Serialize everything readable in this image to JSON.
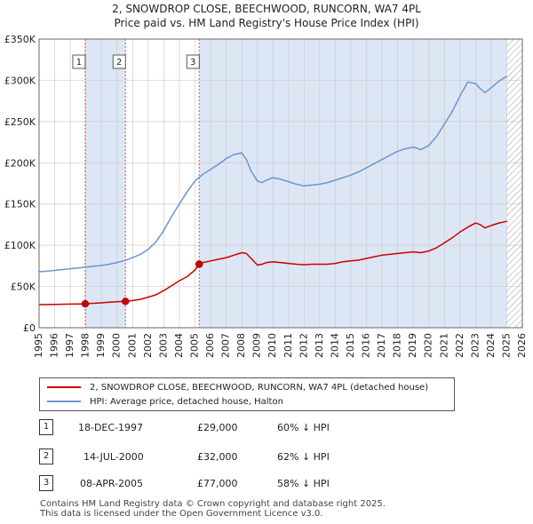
{
  "title_line1": "2, SNOWDROP CLOSE, BEECHWOOD, RUNCORN, WA7 4PL",
  "title_line2": "Price paid vs. HM Land Registry's House Price Index (HPI)",
  "colors": {
    "property": "#cc0000",
    "hpi": "#6a96cf",
    "shade": "#dde6f4",
    "grid": "#cccccc",
    "sale_line": "#e05050"
  },
  "chart_data": {
    "type": "line",
    "xlim": [
      1995,
      2026
    ],
    "ylim": [
      0,
      350000
    ],
    "x_ticks": [
      1995,
      1996,
      1997,
      1998,
      1999,
      2000,
      2001,
      2002,
      2003,
      2004,
      2005,
      2006,
      2007,
      2008,
      2009,
      2010,
      2011,
      2012,
      2013,
      2014,
      2015,
      2016,
      2017,
      2018,
      2019,
      2020,
      2021,
      2022,
      2023,
      2024,
      2025,
      2026
    ],
    "y_ticks": [
      {
        "value": 0,
        "label": "£0"
      },
      {
        "value": 50000,
        "label": "£50K"
      },
      {
        "value": 100000,
        "label": "£100K"
      },
      {
        "value": 150000,
        "label": "£150K"
      },
      {
        "value": 200000,
        "label": "£200K"
      },
      {
        "value": 250000,
        "label": "£250K"
      },
      {
        "value": 300000,
        "label": "£300K"
      },
      {
        "value": 350000,
        "label": "£350K"
      }
    ],
    "grid": true,
    "series": [
      {
        "name": "2, SNOWDROP CLOSE, BEECHWOOD, RUNCORN, WA7 4PL (detached house)",
        "x": [
          1995.0,
          1996.0,
          1997.0,
          1997.96,
          1998.5,
          1999.0,
          1999.5,
          2000.0,
          2000.54,
          2001.0,
          2001.5,
          2002.0,
          2002.5,
          2003.0,
          2003.5,
          2004.0,
          2004.5,
          2005.0,
          2005.27,
          2005.5,
          2006.0,
          2006.5,
          2007.0,
          2007.5,
          2008.0,
          2008.3,
          2008.6,
          2009.0,
          2009.3,
          2009.6,
          2010.0,
          2010.5,
          2011.0,
          2011.5,
          2012.0,
          2012.5,
          2013.0,
          2013.5,
          2014.0,
          2014.5,
          2015.0,
          2015.5,
          2016.0,
          2016.5,
          2017.0,
          2017.5,
          2018.0,
          2018.5,
          2019.0,
          2019.5,
          2020.0,
          2020.5,
          2021.0,
          2021.5,
          2022.0,
          2022.5,
          2023.0,
          2023.3,
          2023.6,
          2024.0,
          2024.5,
          2025.0
        ],
        "values": [
          28000,
          28300,
          28700,
          29000,
          29600,
          30200,
          31000,
          31400,
          32000,
          33000,
          34500,
          37000,
          40000,
          45000,
          51000,
          57000,
          62000,
          70000,
          77000,
          79000,
          81000,
          83000,
          85000,
          88000,
          91000,
          90000,
          84000,
          76000,
          77000,
          79000,
          80000,
          79000,
          78000,
          77000,
          76500,
          77000,
          77000,
          77000,
          78000,
          80000,
          81000,
          82000,
          84000,
          86000,
          88000,
          89000,
          90000,
          91000,
          92000,
          91000,
          93000,
          97000,
          103000,
          109000,
          116000,
          122000,
          127000,
          125000,
          121000,
          124000,
          127000,
          129000
        ]
      },
      {
        "name": "HPI: Average price, detached house, Halton",
        "x": [
          1995.0,
          1995.5,
          1996.0,
          1996.5,
          1997.0,
          1997.5,
          1998.0,
          1998.5,
          1999.0,
          1999.5,
          2000.0,
          2000.5,
          2001.0,
          2001.5,
          2002.0,
          2002.5,
          2003.0,
          2003.5,
          2004.0,
          2004.5,
          2005.0,
          2005.5,
          2006.0,
          2006.5,
          2007.0,
          2007.5,
          2008.0,
          2008.3,
          2008.6,
          2009.0,
          2009.3,
          2009.6,
          2010.0,
          2010.5,
          2011.0,
          2011.5,
          2012.0,
          2012.5,
          2013.0,
          2013.5,
          2014.0,
          2014.5,
          2015.0,
          2015.5,
          2016.0,
          2016.5,
          2017.0,
          2017.5,
          2018.0,
          2018.5,
          2019.0,
          2019.5,
          2020.0,
          2020.5,
          2021.0,
          2021.5,
          2022.0,
          2022.5,
          2023.0,
          2023.3,
          2023.6,
          2024.0,
          2024.5,
          2025.0
        ],
        "values": [
          68000,
          68500,
          69500,
          70500,
          71500,
          72500,
          73500,
          74500,
          75500,
          77000,
          79000,
          81500,
          85000,
          89000,
          95000,
          104000,
          118000,
          135000,
          150000,
          165000,
          178000,
          186000,
          192000,
          198000,
          205000,
          210000,
          212000,
          204000,
          190000,
          178000,
          176000,
          179000,
          182000,
          180000,
          177000,
          174000,
          172000,
          173000,
          174000,
          176000,
          179000,
          182000,
          185000,
          189000,
          194000,
          199000,
          204000,
          209000,
          214000,
          217000,
          219000,
          216000,
          221000,
          232000,
          247000,
          262000,
          281000,
          298000,
          296000,
          290000,
          285000,
          291000,
          299000,
          305000
        ]
      }
    ],
    "sales": [
      {
        "num": "1",
        "date": "18-DEC-1997",
        "x": 1997.96,
        "price": 29000,
        "price_label": "£29,000",
        "hpi_text": "60% ↓ HPI"
      },
      {
        "num": "2",
        "date": "14-JUL-2000",
        "x": 2000.54,
        "price": 32000,
        "price_label": "£32,000",
        "hpi_text": "62% ↓ HPI"
      },
      {
        "num": "3",
        "date": "08-APR-2005",
        "x": 2005.27,
        "price": 77000,
        "price_label": "£77,000",
        "hpi_text": "58% ↓ HPI"
      }
    ],
    "hatch_from": 2025.0
  },
  "legend": {
    "property_label": "2, SNOWDROP CLOSE, BEECHWOOD, RUNCORN, WA7 4PL (detached house)",
    "hpi_label": "HPI: Average price, detached house, Halton"
  },
  "footer_line1": "Contains HM Land Registry data © Crown copyright and database right 2025.",
  "footer_line2": "This data is licensed under the Open Government Licence v3.0."
}
